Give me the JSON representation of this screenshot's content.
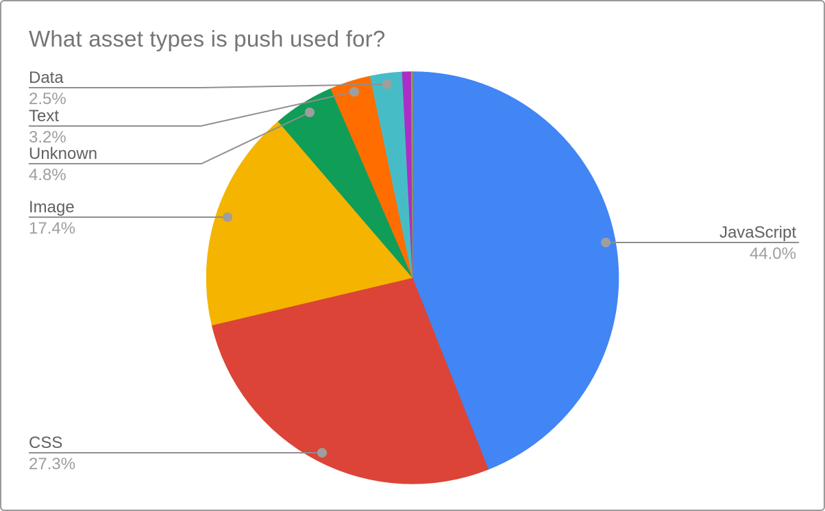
{
  "title": "What asset types is push used for?",
  "frame": {
    "background_color": "#ffffff",
    "border_color": "#9a9a9a",
    "title_color": "#757575"
  },
  "chart_data": {
    "type": "pie",
    "title": "What asset types is push used for?",
    "legend_position": "none",
    "start_angle": "12 o'clock, clockwise",
    "labels_style": {
      "name_color": "#616161",
      "percent_color": "#9e9e9e",
      "leader_line_color": "#8f8f8f",
      "leader_dot_color": "#9e9e9e"
    },
    "slices": [
      {
        "label": "JavaScript",
        "value": 44.0,
        "pct_label": "44.0%",
        "color": "#4285F4"
      },
      {
        "label": "CSS",
        "value": 27.3,
        "pct_label": "27.3%",
        "color": "#DB4437"
      },
      {
        "label": "Image",
        "value": 17.4,
        "pct_label": "17.4%",
        "color": "#F4B400"
      },
      {
        "label": "Unknown",
        "value": 4.8,
        "pct_label": "4.8%",
        "color": "#0F9D58"
      },
      {
        "label": "Text",
        "value": 3.2,
        "pct_label": "3.2%",
        "color": "#FF6D00"
      },
      {
        "label": "Data",
        "value": 2.5,
        "pct_label": "2.5%",
        "color": "#46BDC6"
      },
      {
        "label": "",
        "value": 0.7,
        "pct_label": "",
        "color": "#AB2FC6"
      },
      {
        "label": "",
        "value": 0.1,
        "pct_label": "",
        "color": "#B3A000"
      }
    ]
  }
}
